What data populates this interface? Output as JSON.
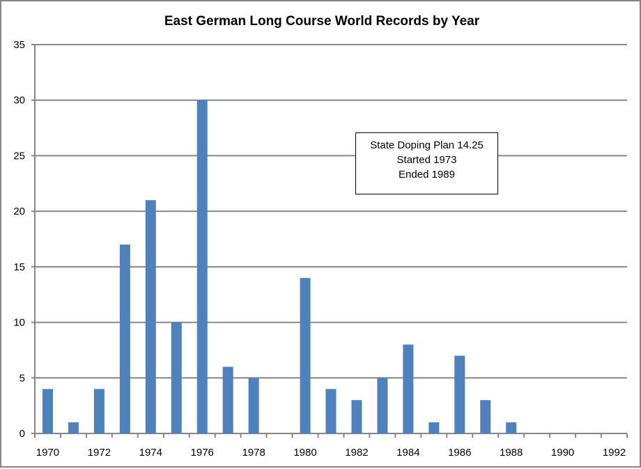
{
  "chart_data": {
    "type": "bar",
    "title": "East German Long Course World Records by Year",
    "xlabel": "",
    "ylabel": "",
    "categories": [
      "1970",
      "1971",
      "1972",
      "1973",
      "1974",
      "1975",
      "1976",
      "1977",
      "1978",
      "1979",
      "1980",
      "1981",
      "1982",
      "1983",
      "1984",
      "1985",
      "1986",
      "1987",
      "1988",
      "1989",
      "1990",
      "1991",
      "1992"
    ],
    "values": [
      4,
      1,
      4,
      17,
      21,
      10,
      30,
      6,
      5,
      0,
      14,
      4,
      3,
      5,
      8,
      1,
      7,
      3,
      1,
      0,
      0,
      0,
      0
    ],
    "x_tick_labels": [
      "1970",
      "1972",
      "1974",
      "1976",
      "1978",
      "1980",
      "1982",
      "1984",
      "1986",
      "1988",
      "1990",
      "1992"
    ],
    "y_ticks": [
      0,
      5,
      10,
      15,
      20,
      25,
      30,
      35
    ],
    "ylim": [
      0,
      35
    ],
    "grid": true,
    "legend": "none",
    "bar_color": "#4F81BD",
    "annotation": [
      "State Doping Plan 14.25",
      "Started 1973",
      "Ended 1989"
    ]
  }
}
